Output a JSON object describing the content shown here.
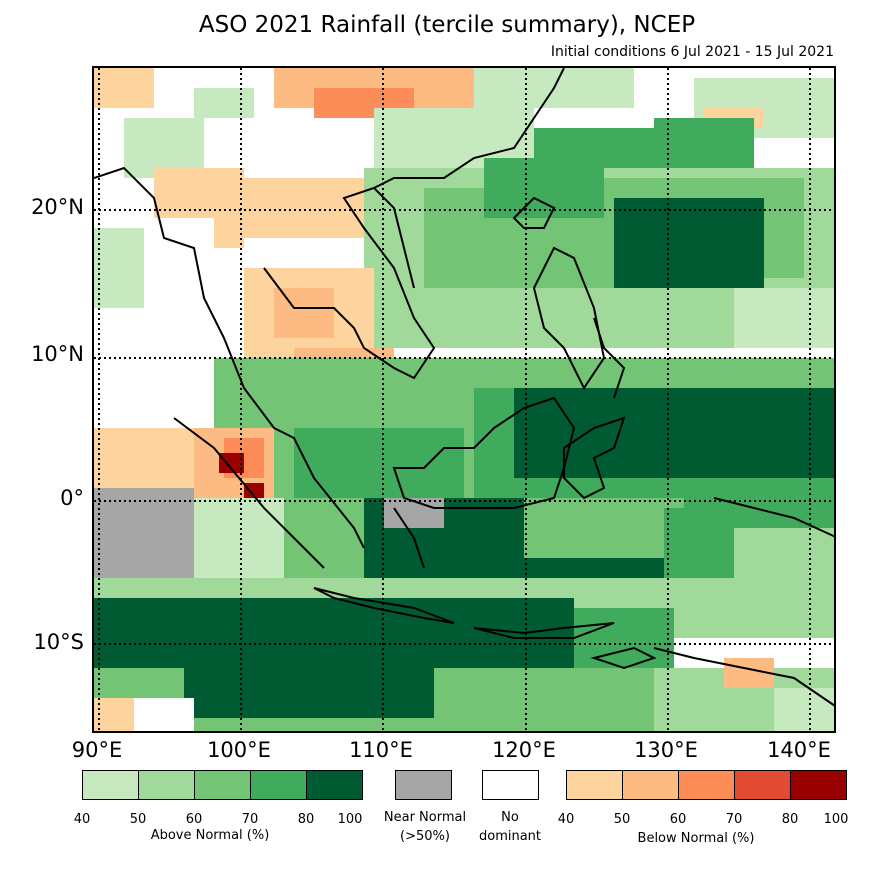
{
  "title": "ASO 2021 Rainfall (tercile summary), NCEP",
  "subtitle": "Initial conditions 6 Jul 2021 - 15 Jul 2021",
  "map": {
    "lat_labels": [
      "20°N",
      "10°N",
      "0°",
      "10°S"
    ],
    "lon_labels": [
      "90°E",
      "100°E",
      "110°E",
      "120°E",
      "130°E",
      "140°E"
    ]
  },
  "legend": {
    "above": {
      "label": "Above Normal (%)",
      "ticks": [
        "40",
        "50",
        "60",
        "70",
        "80",
        "100"
      ],
      "colors": [
        "#c7e9c0",
        "#a1d99b",
        "#74c476",
        "#41ab5d",
        "#005a32"
      ]
    },
    "near": {
      "label_line1": "Near Normal",
      "label_line2": "(>50%)",
      "color": "#a6a6a6"
    },
    "none": {
      "label_line1": "No",
      "label_line2": "dominant",
      "color": "#ffffff"
    },
    "below": {
      "label": "Below Normal (%)",
      "ticks": [
        "40",
        "50",
        "60",
        "70",
        "80",
        "100"
      ],
      "colors": [
        "#fdd49e",
        "#fdbb84",
        "#fc8d59",
        "#e34a33",
        "#990000"
      ]
    }
  }
}
